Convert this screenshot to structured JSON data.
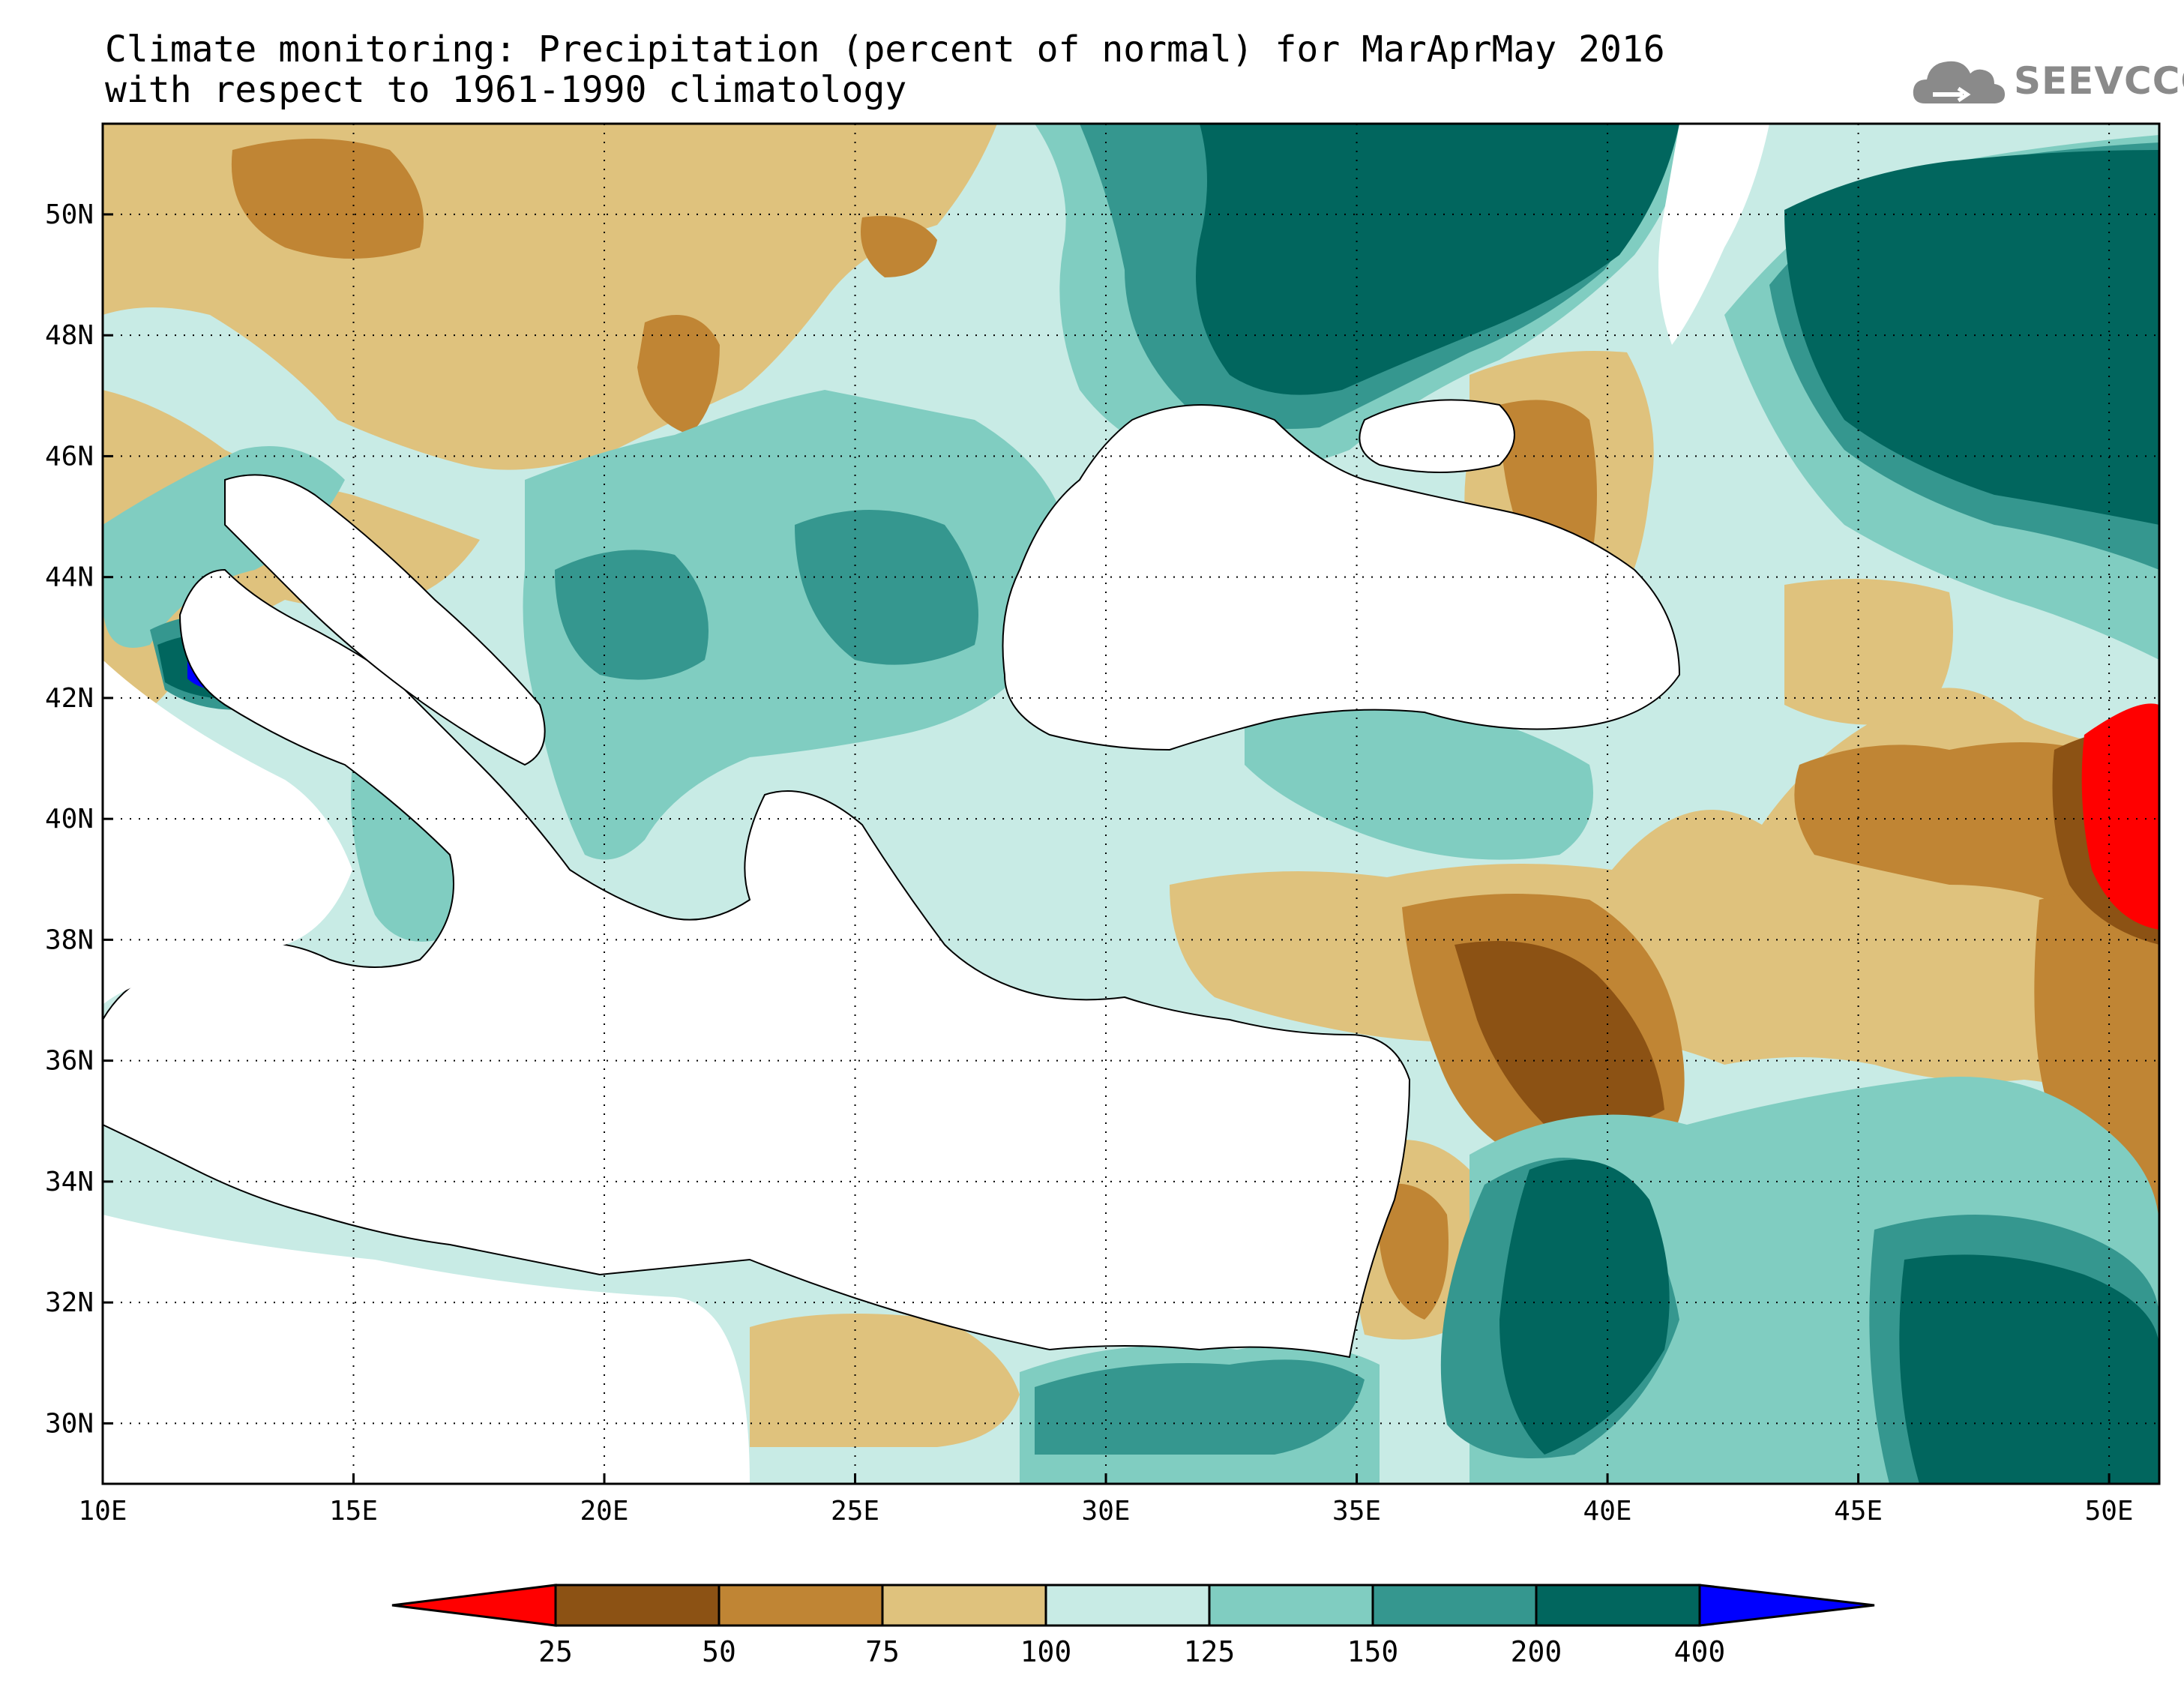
{
  "title": {
    "line1": "Climate monitoring: Precipitation (percent of normal) for MarAprMay 2016",
    "line2": "with respect to 1961-1990 climatology"
  },
  "logo": {
    "text": "SEEVCCC",
    "icon": "cloud-icon"
  },
  "map": {
    "lon_range": [
      10,
      51
    ],
    "lat_range": [
      29,
      51.5
    ],
    "lon_ticks": [
      "10E",
      "15E",
      "20E",
      "25E",
      "30E",
      "35E",
      "40E",
      "45E",
      "50E"
    ],
    "lat_ticks": [
      "30N",
      "32N",
      "34N",
      "36N",
      "38N",
      "40N",
      "42N",
      "44N",
      "46N",
      "48N",
      "50N"
    ],
    "gridlines": "dotted"
  },
  "colors": {
    "lt25": "#ff0000",
    "c25_50": "#8c5214",
    "c50_75": "#c08534",
    "c75_100": "#dfc27d",
    "c100_125": "#c8ebe5",
    "c125_150": "#80cdc1",
    "c150_200": "#35978f",
    "c200_400": "#01665e",
    "gt400": "#0000ff",
    "logo": "#8a8a8a"
  },
  "colorbar": {
    "ticks": [
      "25",
      "50",
      "75",
      "100",
      "125",
      "150",
      "200",
      "400"
    ]
  }
}
